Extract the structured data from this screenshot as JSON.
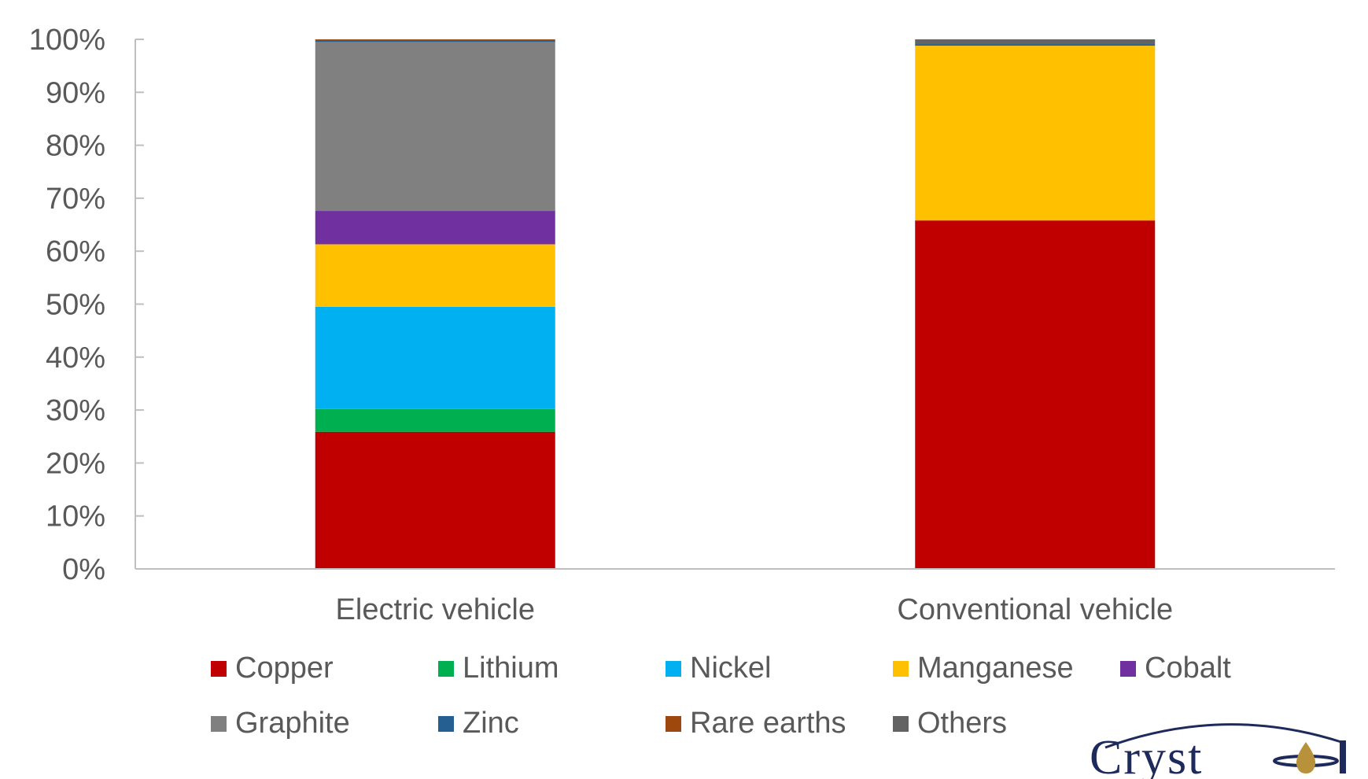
{
  "chart_data": {
    "type": "bar",
    "stacked": true,
    "percent_stacked": true,
    "categories": [
      "Electric vehicle",
      "Conventional vehicle"
    ],
    "ylim": [
      0,
      100
    ],
    "yticks": [
      "0%",
      "10%",
      "20%",
      "30%",
      "40%",
      "50%",
      "60%",
      "70%",
      "80%",
      "90%",
      "100%"
    ],
    "grid": false,
    "legend_position": "bottom",
    "series": [
      {
        "name": "Copper",
        "color": "#C00000",
        "values": [
          25.9,
          65.8
        ]
      },
      {
        "name": "Lithium",
        "color": "#00B050",
        "values": [
          4.3,
          0
        ]
      },
      {
        "name": "Nickel",
        "color": "#00B0F0",
        "values": [
          19.3,
          0
        ]
      },
      {
        "name": "Manganese",
        "color": "#FFC000",
        "values": [
          11.8,
          33.0
        ]
      },
      {
        "name": "Cobalt",
        "color": "#7030A0",
        "values": [
          6.3,
          0
        ]
      },
      {
        "name": "Graphite",
        "color": "#808080",
        "values": [
          31.9,
          0
        ]
      },
      {
        "name": "Zinc",
        "color": "#255E91",
        "values": [
          0.2,
          0.3
        ]
      },
      {
        "name": "Rare earths",
        "color": "#9E480E",
        "values": [
          0.3,
          0
        ]
      },
      {
        "name": "Others",
        "color": "#636363",
        "values": [
          0.0,
          0.9
        ]
      }
    ]
  },
  "logo": {
    "text": "Crystol"
  }
}
